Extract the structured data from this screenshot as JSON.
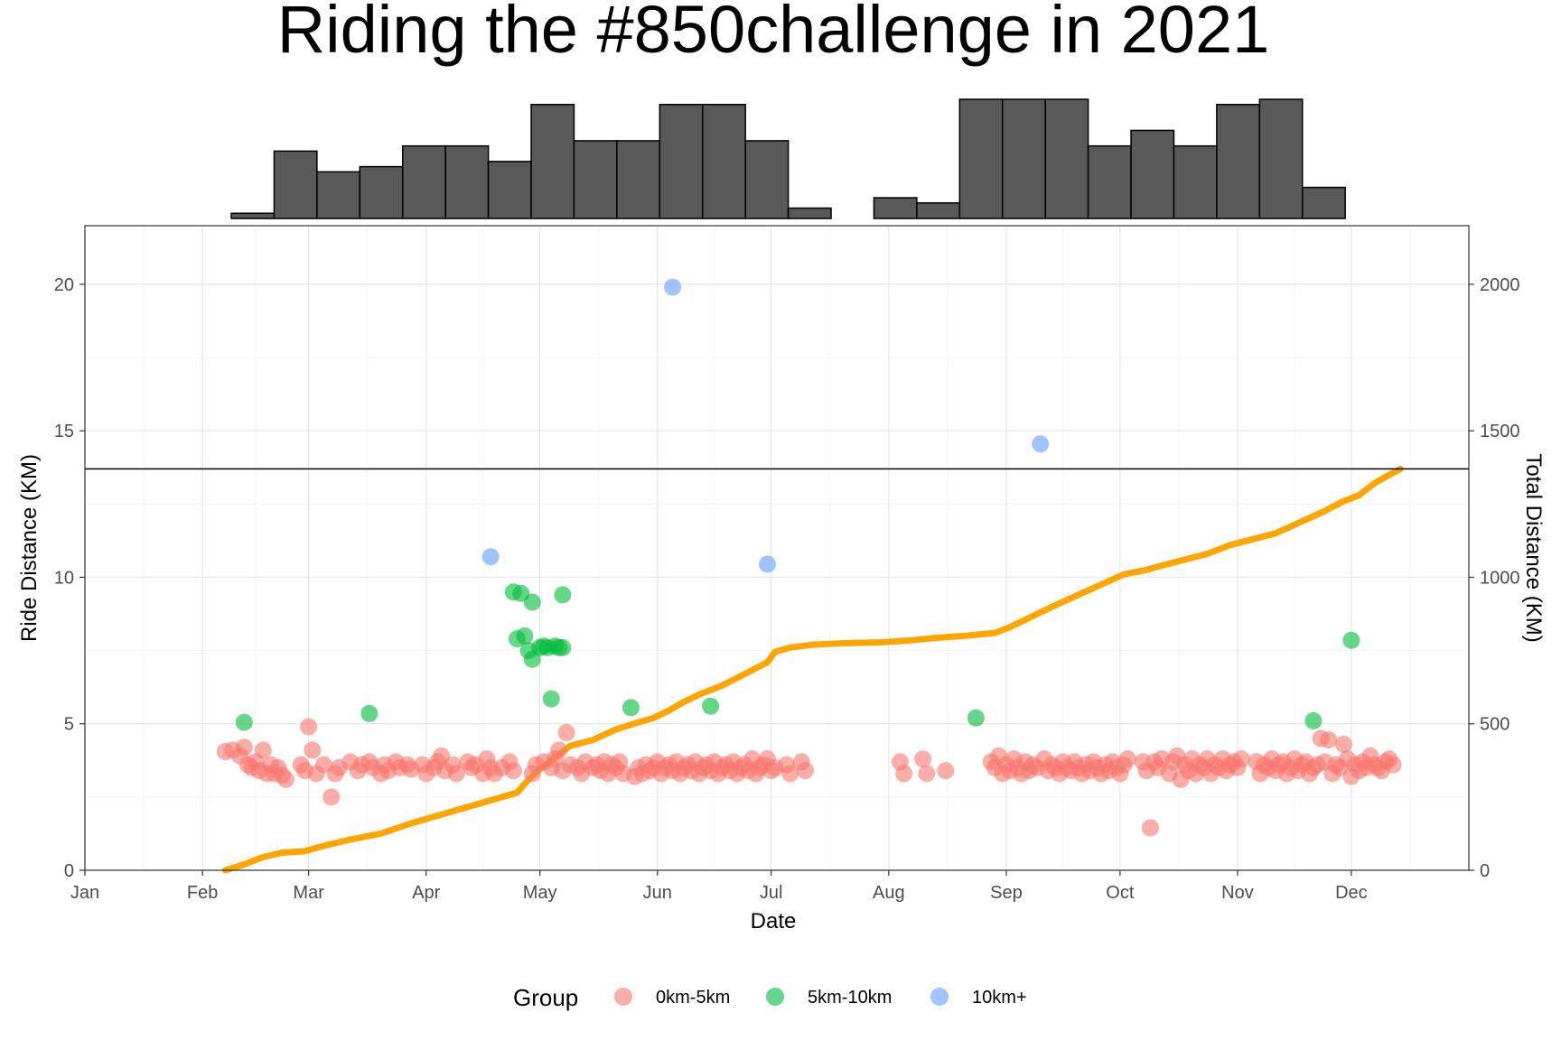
{
  "chart_data": {
    "type": "scatter",
    "title": "Riding the #850challenge in 2021",
    "xlabel": "Date",
    "ylabel": "Ride Distance (KM)",
    "y2label": "Total Distance (KM)",
    "x_ticks": [
      "Jan",
      "Feb",
      "Mar",
      "Apr",
      "May",
      "Jun",
      "Jul",
      "Aug",
      "Sep",
      "Oct",
      "Nov",
      "Dec"
    ],
    "x_tick_days": [
      0,
      31,
      59,
      90,
      120,
      151,
      181,
      212,
      243,
      273,
      304,
      334
    ],
    "xlim_days": [
      0,
      365
    ],
    "y_ticks": [
      0,
      5,
      10,
      15,
      20
    ],
    "ylim": [
      0,
      22
    ],
    "y2_ticks": [
      0,
      500,
      1000,
      1500,
      2000
    ],
    "y2lim": [
      0,
      2200
    ],
    "hline_y2": 1370,
    "grid": true,
    "legend": {
      "title": "Group",
      "position": "bottom",
      "entries": [
        {
          "label": "0km-5km",
          "color": "#F8766D"
        },
        {
          "label": "5km-10km",
          "color": "#00BA38"
        },
        {
          "label": "10km+",
          "color": "#619CFF"
        }
      ]
    },
    "histogram": {
      "bin_start_day": 16,
      "bin_width_days": 11.3,
      "counts": [
        0,
        0,
        1,
        13,
        9,
        10,
        14,
        14,
        11,
        22,
        15,
        15,
        22,
        22,
        15,
        2,
        0,
        4,
        3,
        23,
        23,
        23,
        14,
        17,
        14,
        22,
        23,
        6,
        0
      ]
    },
    "series": [
      {
        "name": "0km-5km",
        "color": "#F8766D",
        "points": [
          [
            37,
            4.05
          ],
          [
            39,
            4.1
          ],
          [
            41,
            3.9
          ],
          [
            42,
            4.2
          ],
          [
            43,
            3.6
          ],
          [
            44,
            3.5
          ],
          [
            45,
            3.7
          ],
          [
            46,
            3.4
          ],
          [
            47,
            4.1
          ],
          [
            48,
            3.3
          ],
          [
            49,
            3.6
          ],
          [
            50,
            3.3
          ],
          [
            51,
            3.5
          ],
          [
            52,
            3.25
          ],
          [
            53,
            3.1
          ],
          [
            57,
            3.6
          ],
          [
            58,
            3.4
          ],
          [
            59,
            4.9
          ],
          [
            60,
            4.1
          ],
          [
            61,
            3.3
          ],
          [
            63,
            3.6
          ],
          [
            65,
            2.5
          ],
          [
            66,
            3.3
          ],
          [
            67,
            3.5
          ],
          [
            70,
            3.7
          ],
          [
            72,
            3.4
          ],
          [
            73,
            3.6
          ],
          [
            75,
            3.7
          ],
          [
            76,
            3.5
          ],
          [
            78,
            3.3
          ],
          [
            79,
            3.6
          ],
          [
            80,
            3.4
          ],
          [
            82,
            3.7
          ],
          [
            83,
            3.5
          ],
          [
            85,
            3.6
          ],
          [
            86,
            3.45
          ],
          [
            89,
            3.6
          ],
          [
            90,
            3.3
          ],
          [
            92,
            3.5
          ],
          [
            93,
            3.7
          ],
          [
            94,
            3.9
          ],
          [
            95,
            3.4
          ],
          [
            97,
            3.6
          ],
          [
            98,
            3.3
          ],
          [
            101,
            3.7
          ],
          [
            102,
            3.5
          ],
          [
            103,
            3.6
          ],
          [
            105,
            3.3
          ],
          [
            106,
            3.8
          ],
          [
            107,
            3.5
          ],
          [
            108,
            3.3
          ],
          [
            110,
            3.5
          ],
          [
            112,
            3.7
          ],
          [
            113,
            3.4
          ],
          [
            118,
            3.3
          ],
          [
            119,
            3.6
          ],
          [
            121,
            3.7
          ],
          [
            123,
            3.5
          ],
          [
            124,
            3.8
          ],
          [
            125,
            4.1
          ],
          [
            126,
            3.4
          ],
          [
            127,
            4.7
          ],
          [
            128,
            3.6
          ],
          [
            130,
            3.5
          ],
          [
            131,
            3.3
          ],
          [
            132,
            3.7
          ],
          [
            134,
            3.5
          ],
          [
            135,
            3.6
          ],
          [
            136,
            3.4
          ],
          [
            137,
            3.7
          ],
          [
            138,
            3.3
          ],
          [
            139,
            3.6
          ],
          [
            140,
            3.5
          ],
          [
            141,
            3.7
          ],
          [
            142,
            3.3
          ],
          [
            145,
            3.2
          ],
          [
            146,
            3.5
          ],
          [
            147,
            3.3
          ],
          [
            148,
            3.6
          ],
          [
            149,
            3.4
          ],
          [
            150,
            3.5
          ],
          [
            151,
            3.7
          ],
          [
            152,
            3.3
          ],
          [
            153,
            3.5
          ],
          [
            154,
            3.6
          ],
          [
            155,
            3.4
          ],
          [
            156,
            3.7
          ],
          [
            157,
            3.3
          ],
          [
            158,
            3.5
          ],
          [
            159,
            3.6
          ],
          [
            160,
            3.4
          ],
          [
            161,
            3.7
          ],
          [
            162,
            3.3
          ],
          [
            163,
            3.5
          ],
          [
            164,
            3.6
          ],
          [
            165,
            3.4
          ],
          [
            166,
            3.7
          ],
          [
            167,
            3.3
          ],
          [
            168,
            3.5
          ],
          [
            169,
            3.6
          ],
          [
            170,
            3.4
          ],
          [
            171,
            3.7
          ],
          [
            172,
            3.3
          ],
          [
            173,
            3.5
          ],
          [
            174,
            3.6
          ],
          [
            175,
            3.4
          ],
          [
            176,
            3.8
          ],
          [
            177,
            3.3
          ],
          [
            178,
            3.5
          ],
          [
            179,
            3.6
          ],
          [
            180,
            3.8
          ],
          [
            181,
            3.4
          ],
          [
            182,
            3.5
          ],
          [
            185,
            3.6
          ],
          [
            186,
            3.3
          ],
          [
            189,
            3.7
          ],
          [
            190,
            3.4
          ],
          [
            215,
            3.7
          ],
          [
            216,
            3.3
          ],
          [
            221,
            3.8
          ],
          [
            222,
            3.3
          ],
          [
            227,
            3.4
          ],
          [
            239,
            3.7
          ],
          [
            240,
            3.5
          ],
          [
            241,
            3.9
          ],
          [
            242,
            3.3
          ],
          [
            243,
            3.6
          ],
          [
            244,
            3.4
          ],
          [
            245,
            3.8
          ],
          [
            246,
            3.5
          ],
          [
            247,
            3.3
          ],
          [
            248,
            3.7
          ],
          [
            249,
            3.4
          ],
          [
            250,
            3.6
          ],
          [
            251,
            3.5
          ],
          [
            253,
            3.8
          ],
          [
            254,
            3.4
          ],
          [
            255,
            3.6
          ],
          [
            256,
            3.5
          ],
          [
            257,
            3.3
          ],
          [
            258,
            3.7
          ],
          [
            259,
            3.5
          ],
          [
            260,
            3.4
          ],
          [
            261,
            3.7
          ],
          [
            262,
            3.5
          ],
          [
            263,
            3.3
          ],
          [
            264,
            3.6
          ],
          [
            265,
            3.4
          ],
          [
            266,
            3.7
          ],
          [
            267,
            3.5
          ],
          [
            268,
            3.3
          ],
          [
            269,
            3.6
          ],
          [
            270,
            3.4
          ],
          [
            271,
            3.7
          ],
          [
            272,
            3.5
          ],
          [
            273,
            3.3
          ],
          [
            274,
            3.6
          ],
          [
            275,
            3.8
          ],
          [
            279,
            3.7
          ],
          [
            280,
            3.4
          ],
          [
            281,
            1.45
          ],
          [
            282,
            3.7
          ],
          [
            283,
            3.5
          ],
          [
            284,
            3.8
          ],
          [
            286,
            3.3
          ],
          [
            287,
            3.7
          ],
          [
            288,
            3.9
          ],
          [
            289,
            3.1
          ],
          [
            290,
            3.6
          ],
          [
            291,
            3.4
          ],
          [
            292,
            3.8
          ],
          [
            293,
            3.3
          ],
          [
            294,
            3.6
          ],
          [
            295,
            3.5
          ],
          [
            296,
            3.8
          ],
          [
            297,
            3.3
          ],
          [
            298,
            3.6
          ],
          [
            299,
            3.5
          ],
          [
            300,
            3.8
          ],
          [
            301,
            3.4
          ],
          [
            302,
            3.6
          ],
          [
            303,
            3.7
          ],
          [
            304,
            3.5
          ],
          [
            305,
            3.8
          ],
          [
            309,
            3.7
          ],
          [
            310,
            3.3
          ],
          [
            311,
            3.6
          ],
          [
            312,
            3.5
          ],
          [
            313,
            3.8
          ],
          [
            314,
            3.4
          ],
          [
            315,
            3.6
          ],
          [
            316,
            3.7
          ],
          [
            317,
            3.3
          ],
          [
            318,
            3.5
          ],
          [
            319,
            3.8
          ],
          [
            320,
            3.4
          ],
          [
            321,
            3.6
          ],
          [
            322,
            3.7
          ],
          [
            323,
            3.3
          ],
          [
            324,
            3.5
          ],
          [
            325,
            3.6
          ],
          [
            326,
            4.5
          ],
          [
            327,
            3.7
          ],
          [
            328,
            4.45
          ],
          [
            329,
            3.3
          ],
          [
            330,
            3.6
          ],
          [
            331,
            3.5
          ],
          [
            332,
            4.3
          ],
          [
            333,
            3.8
          ],
          [
            334,
            3.2
          ],
          [
            335,
            3.6
          ],
          [
            336,
            3.4
          ],
          [
            337,
            3.7
          ],
          [
            338,
            3.5
          ],
          [
            339,
            3.9
          ],
          [
            340,
            3.6
          ],
          [
            341,
            3.5
          ],
          [
            342,
            3.4
          ],
          [
            343,
            3.7
          ],
          [
            344,
            3.8
          ],
          [
            345,
            3.6
          ]
        ]
      },
      {
        "name": "5km-10km",
        "color": "#00BA38",
        "points": [
          [
            42,
            5.05
          ],
          [
            75,
            5.35
          ],
          [
            113,
            9.5
          ],
          [
            114,
            7.9
          ],
          [
            115,
            9.45
          ],
          [
            116,
            8.0
          ],
          [
            117,
            7.5
          ],
          [
            118,
            9.15
          ],
          [
            118,
            7.2
          ],
          [
            120,
            7.6
          ],
          [
            121,
            7.65
          ],
          [
            122,
            7.6
          ],
          [
            123,
            5.85
          ],
          [
            124,
            7.65
          ],
          [
            125,
            7.6
          ],
          [
            126,
            9.4
          ],
          [
            126,
            7.6
          ],
          [
            144,
            5.55
          ],
          [
            165,
            5.6
          ],
          [
            235,
            5.2
          ],
          [
            324,
            5.1
          ],
          [
            334,
            7.85
          ]
        ]
      },
      {
        "name": "10km+",
        "color": "#619CFF",
        "points": [
          [
            107,
            10.7
          ],
          [
            155,
            19.9
          ],
          [
            180,
            10.45
          ],
          [
            252,
            14.55
          ]
        ]
      }
    ],
    "cumulative_series": {
      "name": "Total Distance",
      "color": "#FFA500",
      "points": [
        [
          37,
          0
        ],
        [
          42,
          20
        ],
        [
          47,
          45
        ],
        [
          52,
          60
        ],
        [
          58,
          65
        ],
        [
          62,
          80
        ],
        [
          70,
          105
        ],
        [
          78,
          125
        ],
        [
          86,
          160
        ],
        [
          94,
          190
        ],
        [
          102,
          220
        ],
        [
          110,
          250
        ],
        [
          114,
          265
        ],
        [
          117,
          310
        ],
        [
          120,
          345
        ],
        [
          124,
          385
        ],
        [
          128,
          425
        ],
        [
          134,
          445
        ],
        [
          140,
          480
        ],
        [
          146,
          505
        ],
        [
          150,
          520
        ],
        [
          154,
          545
        ],
        [
          158,
          575
        ],
        [
          162,
          600
        ],
        [
          168,
          630
        ],
        [
          174,
          670
        ],
        [
          180,
          710
        ],
        [
          182,
          745
        ],
        [
          186,
          760
        ],
        [
          192,
          770
        ],
        [
          200,
          775
        ],
        [
          210,
          778
        ],
        [
          218,
          785
        ],
        [
          226,
          795
        ],
        [
          232,
          800
        ],
        [
          240,
          810
        ],
        [
          244,
          830
        ],
        [
          248,
          855
        ],
        [
          252,
          880
        ],
        [
          256,
          905
        ],
        [
          262,
          940
        ],
        [
          268,
          975
        ],
        [
          274,
          1010
        ],
        [
          280,
          1025
        ],
        [
          284,
          1040
        ],
        [
          290,
          1060
        ],
        [
          296,
          1080
        ],
        [
          302,
          1110
        ],
        [
          308,
          1130
        ],
        [
          314,
          1150
        ],
        [
          320,
          1185
        ],
        [
          326,
          1220
        ],
        [
          332,
          1260
        ],
        [
          336,
          1280
        ],
        [
          340,
          1320
        ],
        [
          344,
          1350
        ],
        [
          347,
          1370
        ]
      ]
    }
  }
}
